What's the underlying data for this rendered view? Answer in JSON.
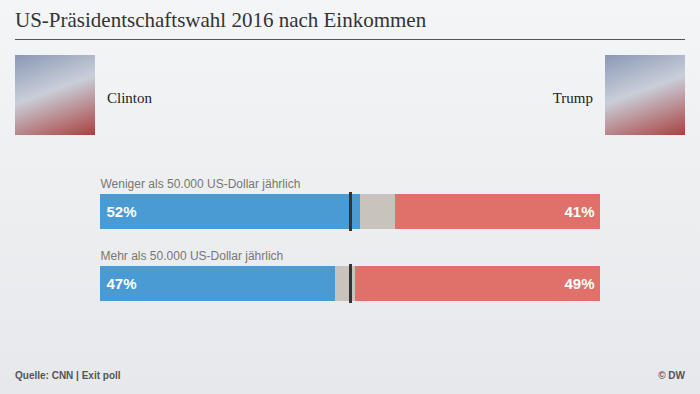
{
  "chart_data": {
    "type": "bar",
    "orientation": "horizontal",
    "stacked": true,
    "data_labels": true,
    "tick_labels": false,
    "title": "US-Präsidentschaftswahl 2016 nach Einkommen",
    "source": "Quelle: CNN | Exit poll",
    "credit": "© DW",
    "categories": [
      "Weniger als 50.000 US-Dollar jährlich",
      "Mehr als 50.000 US-Dollar jährlich"
    ],
    "series": [
      {
        "name": "Clinton",
        "color": "#4a9ad4",
        "values": [
          52,
          47
        ],
        "value_labels": [
          "52%",
          "47%"
        ]
      },
      {
        "name": null,
        "color": "#c8c3bd",
        "values": [
          7,
          4
        ]
      },
      {
        "name": "Trump",
        "color": "#e0706a",
        "values": [
          41,
          49
        ],
        "value_labels": [
          "41%",
          "49%"
        ]
      }
    ],
    "xlim": [
      0,
      100
    ],
    "reference_line": 50
  }
}
